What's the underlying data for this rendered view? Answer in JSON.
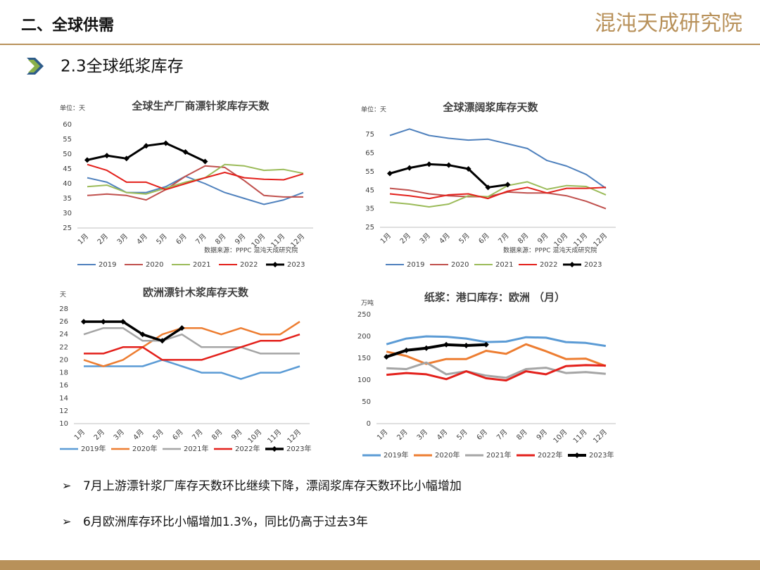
{
  "header": {
    "section": "二、全球供需",
    "logo": "混沌天成研究院",
    "subtitle": "2.3全球纸浆库存"
  },
  "bullets": [
    "7月上游漂针浆厂库存天数环比继续下降，漂阔浆库存天数环比小幅增加",
    "6月欧洲库存环比小幅增加1.3%，同比仍高于过去3年"
  ],
  "chart_data": [
    {
      "type": "line",
      "title": "全球生产厂商漂针浆库存天数",
      "unit": "单位：天",
      "source": "数据来源：PPPC 混沌天成研究院",
      "categories": [
        "1月",
        "2月",
        "3月",
        "4月",
        "5月",
        "6月",
        "7月",
        "8月",
        "9月",
        "10月",
        "11月",
        "12月"
      ],
      "ylim": [
        25,
        60
      ],
      "yticks": [
        25,
        30,
        35,
        40,
        45,
        50,
        55,
        60
      ],
      "series": [
        {
          "name": "2019",
          "color": "#4f81bd",
          "values": [
            42,
            40.5,
            37,
            37,
            39,
            42.5,
            40,
            37,
            35,
            33,
            34.5,
            37
          ]
        },
        {
          "name": "2020",
          "color": "#c0504d",
          "values": [
            36,
            36.5,
            36,
            34.5,
            38,
            42.5,
            46,
            45.5,
            41,
            36,
            35.5,
            35.5
          ]
        },
        {
          "name": "2021",
          "color": "#9bbb59",
          "values": [
            39,
            39.5,
            37,
            36.5,
            38.5,
            40.5,
            42,
            46.5,
            46,
            44.5,
            44.8,
            43.5
          ]
        },
        {
          "name": "2022",
          "color": "#e3201b",
          "values": [
            46.5,
            44.5,
            40.5,
            40.5,
            38,
            40,
            42,
            43.8,
            42,
            41.5,
            41.3,
            43.3
          ]
        },
        {
          "name": "2023",
          "color": "#000000",
          "marker": "diamond",
          "values": [
            48,
            49.5,
            48.5,
            52.8,
            53.7,
            50.7,
            47.5,
            null,
            null,
            null,
            null,
            null
          ]
        }
      ]
    },
    {
      "type": "line",
      "title": "全球漂阔浆库存天数",
      "unit": "单位：天",
      "source": "数据来源：PPPC 混沌天成研究院",
      "categories": [
        "1月",
        "2月",
        "3月",
        "4月",
        "5月",
        "6月",
        "7月",
        "8月",
        "9月",
        "10月",
        "11月",
        "12月"
      ],
      "ylim": [
        25,
        80
      ],
      "yticks": [
        25,
        35,
        45,
        55,
        65,
        75
      ],
      "series": [
        {
          "name": "2019",
          "color": "#4f81bd",
          "values": [
            74.5,
            78,
            74.5,
            73,
            72,
            72.5,
            70,
            67.5,
            61,
            58,
            53.5,
            46
          ]
        },
        {
          "name": "2020",
          "color": "#c0504d",
          "values": [
            46,
            45,
            43,
            42,
            41.5,
            41.5,
            44,
            43.5,
            43.5,
            42,
            39,
            35
          ]
        },
        {
          "name": "2021",
          "color": "#9bbb59",
          "values": [
            38.5,
            37.5,
            36,
            37.5,
            42,
            41.5,
            47.5,
            49.5,
            45.5,
            47.5,
            47,
            42.5
          ]
        },
        {
          "name": "2022",
          "color": "#e3201b",
          "values": [
            43,
            42,
            40.5,
            42.5,
            43,
            40.5,
            44.5,
            46.5,
            43.5,
            46,
            46,
            46.5
          ]
        },
        {
          "name": "2023",
          "color": "#000000",
          "marker": "diamond",
          "values": [
            54,
            57,
            59,
            58.5,
            56.5,
            46.5,
            48,
            null,
            null,
            null,
            null,
            null
          ]
        }
      ]
    },
    {
      "type": "line",
      "title": "欧洲漂针木浆库存天数",
      "unit": "天",
      "categories": [
        "1月",
        "2月",
        "3月",
        "4月",
        "5月",
        "6月",
        "7月",
        "8月",
        "9月",
        "10月",
        "11月",
        "12月"
      ],
      "ylim": [
        10,
        28
      ],
      "yticks": [
        10,
        12,
        14,
        16,
        18,
        20,
        22,
        24,
        26,
        28
      ],
      "series": [
        {
          "name": "2019年",
          "color": "#5b9bd5",
          "values": [
            19,
            19,
            19,
            19,
            20,
            19,
            18,
            18,
            17,
            18,
            18,
            19
          ]
        },
        {
          "name": "2020年",
          "color": "#ed7d31",
          "values": [
            20,
            19,
            20,
            22,
            24,
            25,
            25,
            24,
            25,
            24,
            24,
            26
          ]
        },
        {
          "name": "2021年",
          "color": "#a5a5a5",
          "values": [
            24,
            25,
            25,
            23,
            23,
            24,
            22,
            22,
            22,
            21,
            21,
            21
          ]
        },
        {
          "name": "2022年",
          "color": "#e3201b",
          "values": [
            21,
            21,
            22,
            22,
            20,
            20,
            20,
            21,
            22,
            23,
            23,
            24
          ]
        },
        {
          "name": "2023年",
          "color": "#000000",
          "marker": "diamond",
          "values": [
            26,
            26,
            26,
            24,
            23,
            25,
            null,
            null,
            null,
            null,
            null,
            null
          ]
        }
      ]
    },
    {
      "type": "line",
      "title": "纸浆：港口库存：欧洲 （月）",
      "unit": "万吨",
      "categories": [
        "1月",
        "2月",
        "3月",
        "4月",
        "5月",
        "6月",
        "7月",
        "8月",
        "9月",
        "10月",
        "11月",
        "12月"
      ],
      "ylim": [
        0,
        250
      ],
      "yticks": [
        0,
        50,
        100,
        150,
        200,
        250
      ],
      "series": [
        {
          "name": "2019年",
          "color": "#5b9bd5",
          "values": [
            182,
            195,
            200,
            199,
            195,
            187,
            188,
            198,
            197,
            187,
            185,
            178
          ]
        },
        {
          "name": "2020年",
          "color": "#ed7d31",
          "values": [
            165,
            155,
            137,
            148,
            148,
            167,
            160,
            182,
            166,
            148,
            149,
            132
          ]
        },
        {
          "name": "2021年",
          "color": "#a5a5a5",
          "values": [
            127,
            125,
            140,
            113,
            120,
            110,
            105,
            125,
            128,
            116,
            118,
            114
          ]
        },
        {
          "name": "2022年",
          "color": "#e3201b",
          "values": [
            112,
            116,
            113,
            102,
            120,
            104,
            99,
            120,
            113,
            132,
            134,
            133
          ]
        },
        {
          "name": "2023年",
          "color": "#000000",
          "marker": "diamond",
          "values": [
            153,
            168,
            173,
            181,
            179,
            181,
            null,
            null,
            null,
            null,
            null,
            null
          ]
        }
      ]
    }
  ]
}
